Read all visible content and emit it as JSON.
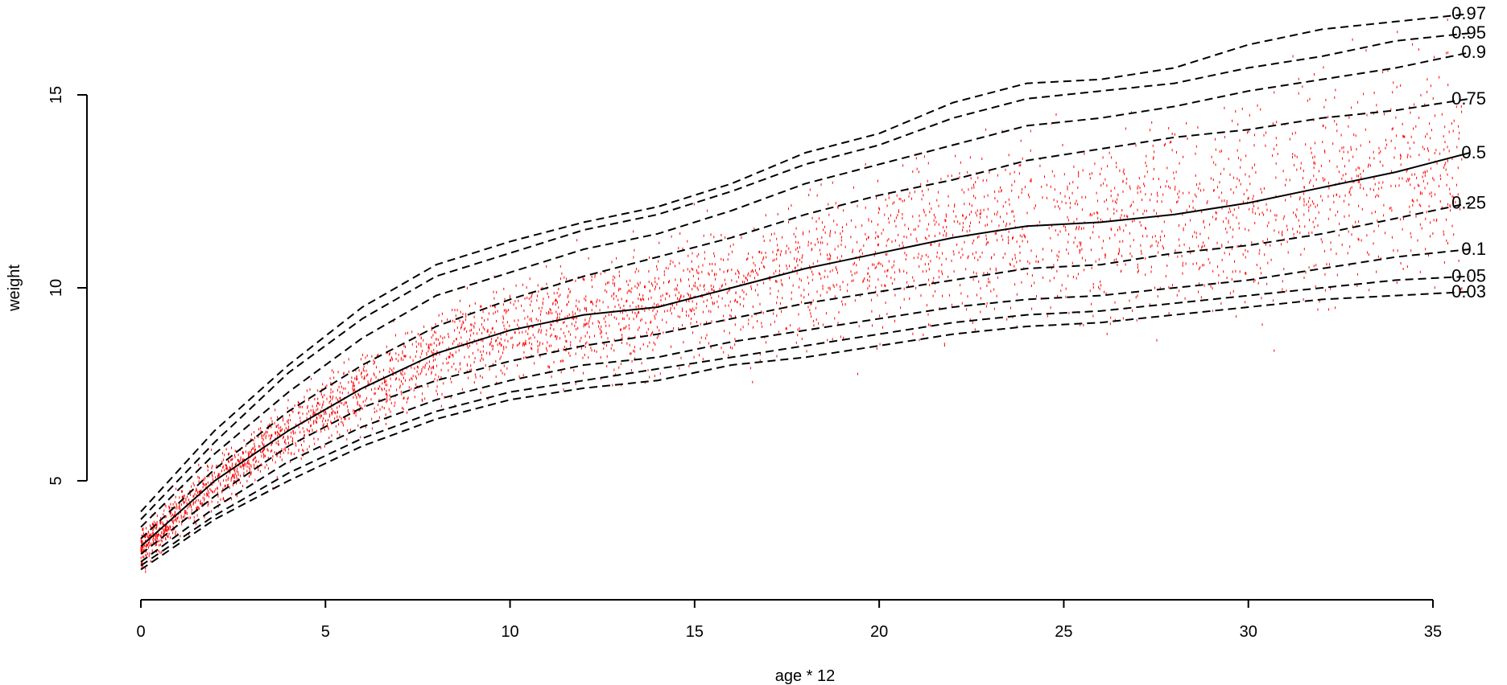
{
  "chart_data": {
    "type": "line",
    "xlabel": "age * 12",
    "ylabel": "weight",
    "xlim": [
      0,
      35
    ],
    "ylim": [
      2,
      15
    ],
    "x_ticks": [
      "0",
      "5",
      "10",
      "15",
      "20",
      "25",
      "30",
      "35"
    ],
    "y_ticks": [
      "5",
      "10",
      "15"
    ],
    "grid": false,
    "legend": "none",
    "colors": {
      "points": "#ff0000",
      "curves": "#000000"
    },
    "scatter": {
      "name": "",
      "note": "dense red point cloud of observations",
      "x_range": [
        0,
        36
      ],
      "y_range": [
        2.5,
        17.5
      ]
    },
    "series": [
      {
        "label": "0.97",
        "style": "dashed",
        "x": [
          0,
          2,
          4,
          6,
          8,
          10,
          12,
          14,
          16,
          18,
          20,
          22,
          24,
          26,
          28,
          30,
          32,
          34,
          36
        ],
        "y": [
          4.2,
          6.3,
          8.0,
          9.5,
          10.6,
          11.2,
          11.7,
          12.1,
          12.7,
          13.5,
          14.0,
          14.8,
          15.3,
          15.4,
          15.7,
          16.3,
          16.7,
          16.9,
          17.1
        ]
      },
      {
        "label": "0.95",
        "style": "dashed",
        "x": [
          0,
          2,
          4,
          6,
          8,
          10,
          12,
          14,
          16,
          18,
          20,
          22,
          24,
          26,
          28,
          30,
          32,
          34,
          36
        ],
        "y": [
          4.0,
          6.0,
          7.8,
          9.2,
          10.3,
          10.9,
          11.5,
          11.9,
          12.5,
          13.2,
          13.7,
          14.4,
          14.9,
          15.1,
          15.3,
          15.7,
          16.0,
          16.4,
          16.6
        ]
      },
      {
        "label": "0.9",
        "style": "dashed",
        "x": [
          0,
          2,
          4,
          6,
          8,
          10,
          12,
          14,
          16,
          18,
          20,
          22,
          24,
          26,
          28,
          30,
          32,
          34,
          36
        ],
        "y": [
          3.8,
          5.7,
          7.3,
          8.7,
          9.8,
          10.4,
          11.0,
          11.4,
          12.0,
          12.7,
          13.2,
          13.7,
          14.2,
          14.4,
          14.7,
          15.1,
          15.4,
          15.7,
          16.1
        ]
      },
      {
        "label": "0.75",
        "style": "dashed",
        "x": [
          0,
          2,
          4,
          6,
          8,
          10,
          12,
          14,
          16,
          18,
          20,
          22,
          24,
          26,
          28,
          30,
          32,
          34,
          36
        ],
        "y": [
          3.5,
          5.3,
          6.8,
          8.0,
          9.0,
          9.7,
          10.3,
          10.8,
          11.3,
          11.9,
          12.4,
          12.8,
          13.3,
          13.6,
          13.9,
          14.1,
          14.4,
          14.6,
          14.9
        ]
      },
      {
        "label": "0.5",
        "style": "solid",
        "x": [
          0,
          2,
          4,
          6,
          8,
          10,
          12,
          14,
          16,
          18,
          20,
          22,
          24,
          26,
          28,
          30,
          32,
          34,
          36
        ],
        "y": [
          3.3,
          5.0,
          6.3,
          7.4,
          8.3,
          8.9,
          9.3,
          9.5,
          10.0,
          10.5,
          10.9,
          11.3,
          11.6,
          11.7,
          11.9,
          12.2,
          12.6,
          13.0,
          13.5
        ]
      },
      {
        "label": "0.25",
        "style": "dashed",
        "x": [
          0,
          2,
          4,
          6,
          8,
          10,
          12,
          14,
          16,
          18,
          20,
          22,
          24,
          26,
          28,
          30,
          32,
          34,
          36
        ],
        "y": [
          3.1,
          4.6,
          5.9,
          6.9,
          7.6,
          8.1,
          8.5,
          8.8,
          9.2,
          9.6,
          9.9,
          10.2,
          10.5,
          10.6,
          10.9,
          11.1,
          11.4,
          11.8,
          12.2
        ]
      },
      {
        "label": "0.1",
        "style": "dashed",
        "x": [
          0,
          2,
          4,
          6,
          8,
          10,
          12,
          14,
          16,
          18,
          20,
          22,
          24,
          26,
          28,
          30,
          32,
          34,
          36
        ],
        "y": [
          2.9,
          4.3,
          5.5,
          6.4,
          7.1,
          7.6,
          8.0,
          8.2,
          8.6,
          8.9,
          9.2,
          9.5,
          9.7,
          9.8,
          10.0,
          10.2,
          10.5,
          10.8,
          11.0
        ]
      },
      {
        "label": "0.05",
        "style": "dashed",
        "x": [
          0,
          2,
          4,
          6,
          8,
          10,
          12,
          14,
          16,
          18,
          20,
          22,
          24,
          26,
          28,
          30,
          32,
          34,
          36
        ],
        "y": [
          2.8,
          4.1,
          5.2,
          6.1,
          6.8,
          7.3,
          7.6,
          7.9,
          8.2,
          8.5,
          8.8,
          9.1,
          9.3,
          9.4,
          9.6,
          9.8,
          10.0,
          10.2,
          10.3
        ]
      },
      {
        "label": "0.03",
        "style": "dashed",
        "x": [
          0,
          2,
          4,
          6,
          8,
          10,
          12,
          14,
          16,
          18,
          20,
          22,
          24,
          26,
          28,
          30,
          32,
          34,
          36
        ],
        "y": [
          2.7,
          4.0,
          5.0,
          5.9,
          6.6,
          7.1,
          7.4,
          7.6,
          8.0,
          8.2,
          8.5,
          8.8,
          9.0,
          9.1,
          9.3,
          9.5,
          9.7,
          9.8,
          9.9
        ]
      }
    ]
  }
}
